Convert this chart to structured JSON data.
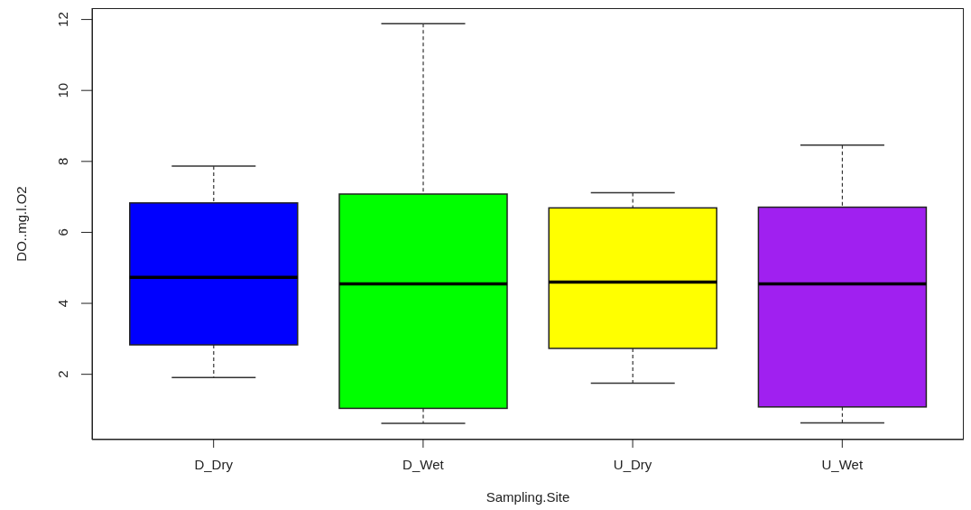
{
  "chart_data": {
    "type": "box",
    "xlabel": "Sampling.Site",
    "ylabel": "DO..mg.l.O2",
    "categories": [
      "D_Dry",
      "D_Wet",
      "U_Dry",
      "U_Wet"
    ],
    "colors": [
      "#0000ff",
      "#00ff00",
      "#ffff00",
      "#a020f0"
    ],
    "boxes": [
      {
        "low": 1.91,
        "q1": 2.83,
        "median": 4.73,
        "q3": 6.83,
        "high": 7.87
      },
      {
        "low": 0.62,
        "q1": 1.04,
        "median": 4.55,
        "q3": 7.08,
        "high": 11.88
      },
      {
        "low": 1.75,
        "q1": 2.73,
        "median": 4.6,
        "q3": 6.69,
        "high": 7.12
      },
      {
        "low": 0.63,
        "q1": 1.08,
        "median": 4.55,
        "q3": 6.71,
        "high": 8.46
      }
    ],
    "ylim": [
      0.16,
      12.32
    ],
    "yticks": [
      2,
      4,
      6,
      8,
      10,
      12
    ]
  }
}
